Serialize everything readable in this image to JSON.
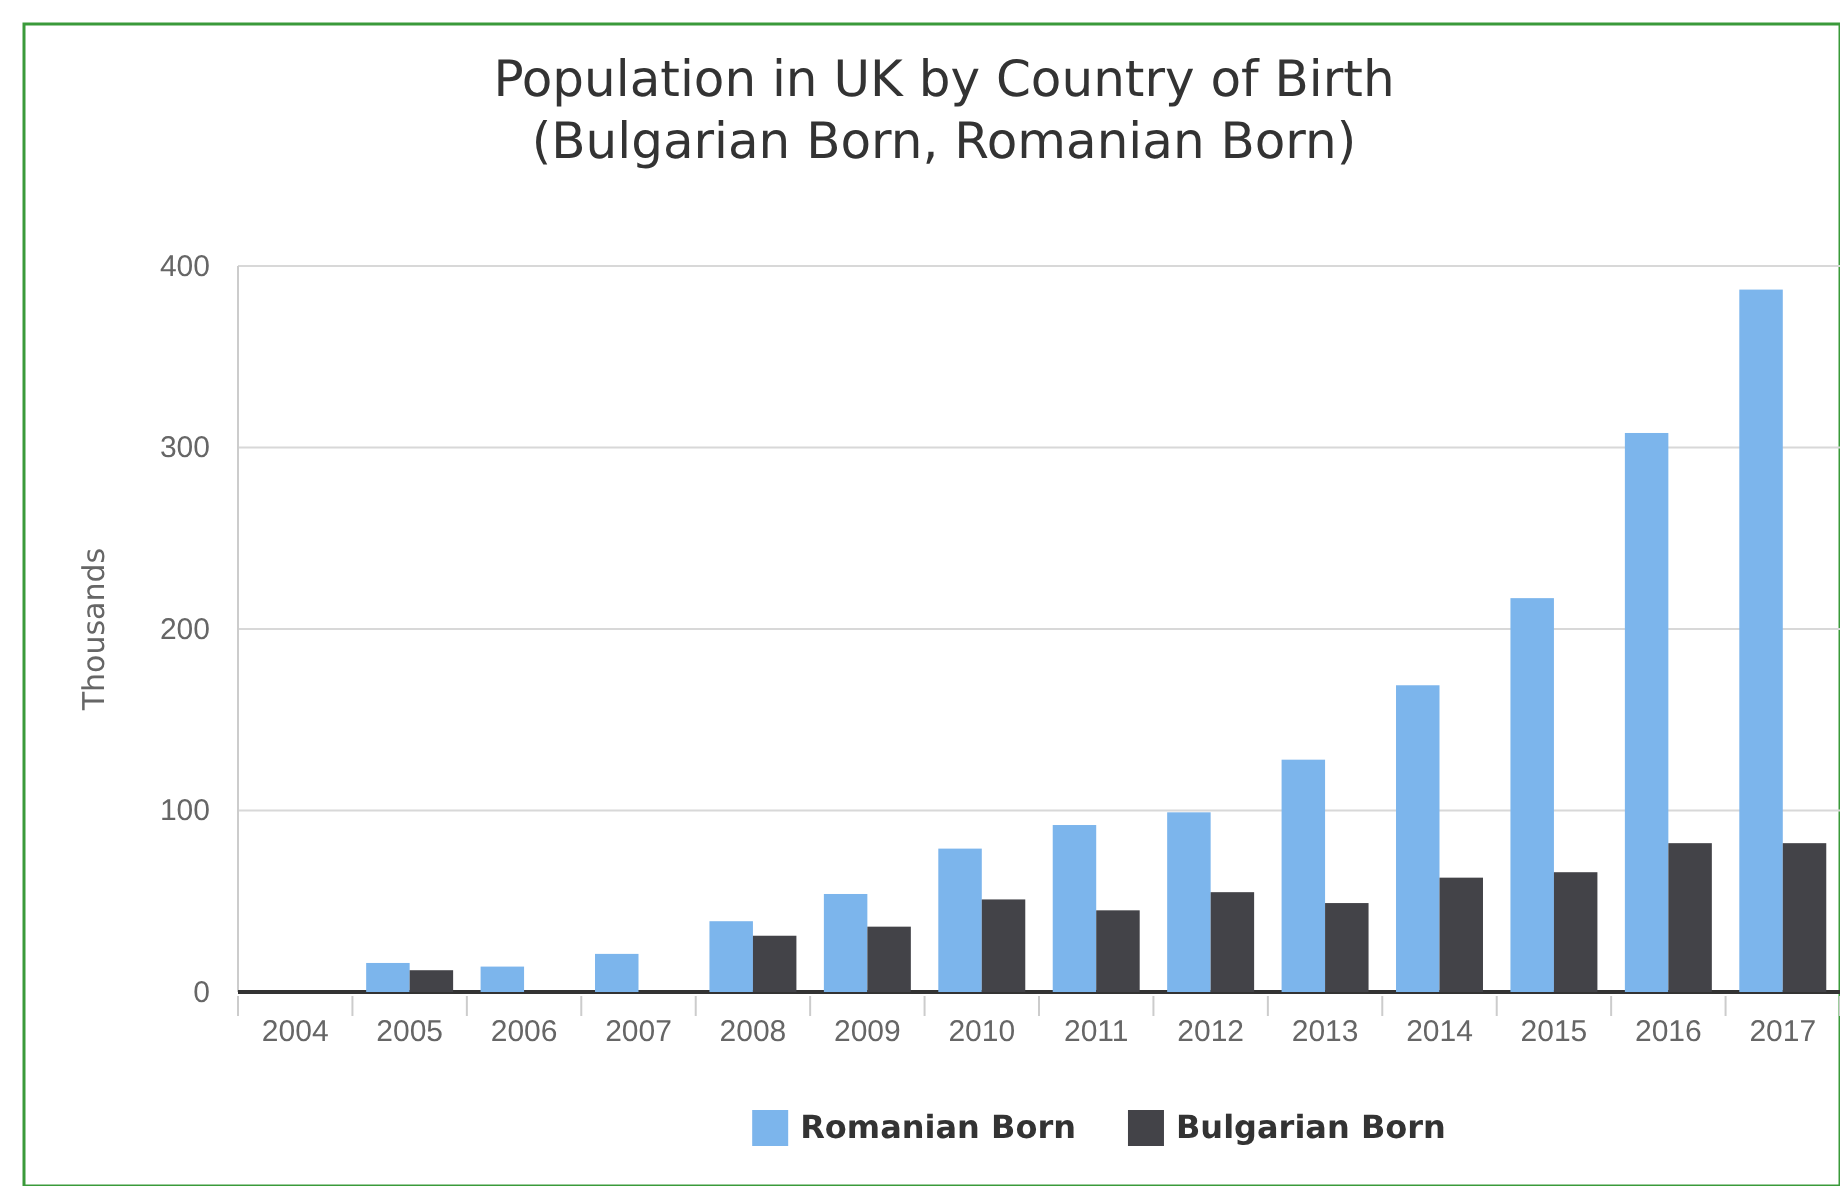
{
  "chart_data": {
    "type": "bar",
    "title": "Population in UK by Country of Birth\n(Bulgarian Born, Romanian Born)",
    "ylabel": "Thousands",
    "categories": [
      "2004",
      "2005",
      "2006",
      "2007",
      "2008",
      "2009",
      "2010",
      "2011",
      "2012",
      "2013",
      "2014",
      "2015",
      "2016",
      "2017"
    ],
    "series": [
      {
        "name": "Romanian Born",
        "color": "#7cb5ec",
        "values": [
          0,
          16,
          14,
          21,
          39,
          54,
          79,
          92,
          99,
          128,
          169,
          217,
          308,
          387
        ]
      },
      {
        "name": "Bulgarian Born",
        "color": "#434348",
        "values": [
          0,
          12,
          0,
          0,
          31,
          36,
          51,
          45,
          55,
          49,
          63,
          66,
          82,
          82
        ]
      }
    ],
    "ylim": [
      0,
      400
    ],
    "yticks": [
      0,
      100,
      200,
      300,
      400
    ],
    "grid": "y",
    "legend": "bottom"
  }
}
